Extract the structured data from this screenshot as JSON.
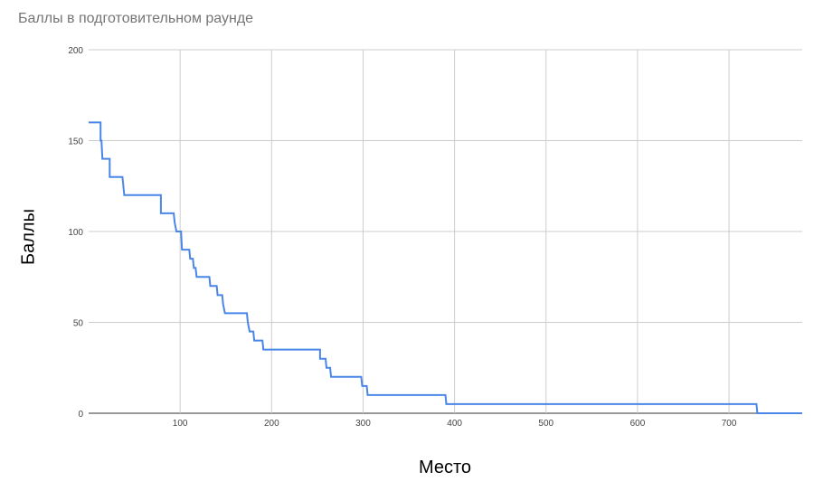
{
  "chart_data": {
    "type": "line",
    "title": "Баллы в подготовительном раунде",
    "xlabel": "Место",
    "ylabel": "Баллы",
    "xlim": [
      0,
      780
    ],
    "ylim": [
      0,
      200
    ],
    "x_ticks": [
      100,
      200,
      300,
      400,
      500,
      600,
      700
    ],
    "y_ticks": [
      0,
      50,
      100,
      150,
      200
    ],
    "grid": true,
    "legend": "none",
    "line_color": "#4a86e8",
    "series": [
      {
        "step": true,
        "points": [
          [
            0,
            160
          ],
          [
            13,
            160
          ],
          [
            13,
            150
          ],
          [
            14,
            150
          ],
          [
            15,
            140
          ],
          [
            23,
            140
          ],
          [
            23,
            130
          ],
          [
            37,
            130
          ],
          [
            39,
            120
          ],
          [
            79,
            120
          ],
          [
            79,
            110
          ],
          [
            93,
            110
          ],
          [
            94,
            105
          ],
          [
            96,
            100
          ],
          [
            101,
            100
          ],
          [
            102,
            90
          ],
          [
            110,
            90
          ],
          [
            111,
            85
          ],
          [
            114,
            85
          ],
          [
            115,
            80
          ],
          [
            117,
            80
          ],
          [
            118,
            75
          ],
          [
            132,
            75
          ],
          [
            133,
            70
          ],
          [
            140,
            70
          ],
          [
            141,
            65
          ],
          [
            146,
            65
          ],
          [
            147,
            60
          ],
          [
            149,
            55
          ],
          [
            173,
            55
          ],
          [
            174,
            50
          ],
          [
            176,
            45
          ],
          [
            180,
            45
          ],
          [
            181,
            40
          ],
          [
            190,
            40
          ],
          [
            191,
            35
          ],
          [
            253,
            35
          ],
          [
            253,
            30
          ],
          [
            259,
            30
          ],
          [
            260,
            25
          ],
          [
            264,
            25
          ],
          [
            265,
            20
          ],
          [
            298,
            20
          ],
          [
            299,
            15
          ],
          [
            304,
            15
          ],
          [
            305,
            10
          ],
          [
            390,
            10
          ],
          [
            391,
            5
          ],
          [
            730,
            5
          ],
          [
            731,
            0
          ],
          [
            780,
            0
          ]
        ]
      }
    ]
  }
}
